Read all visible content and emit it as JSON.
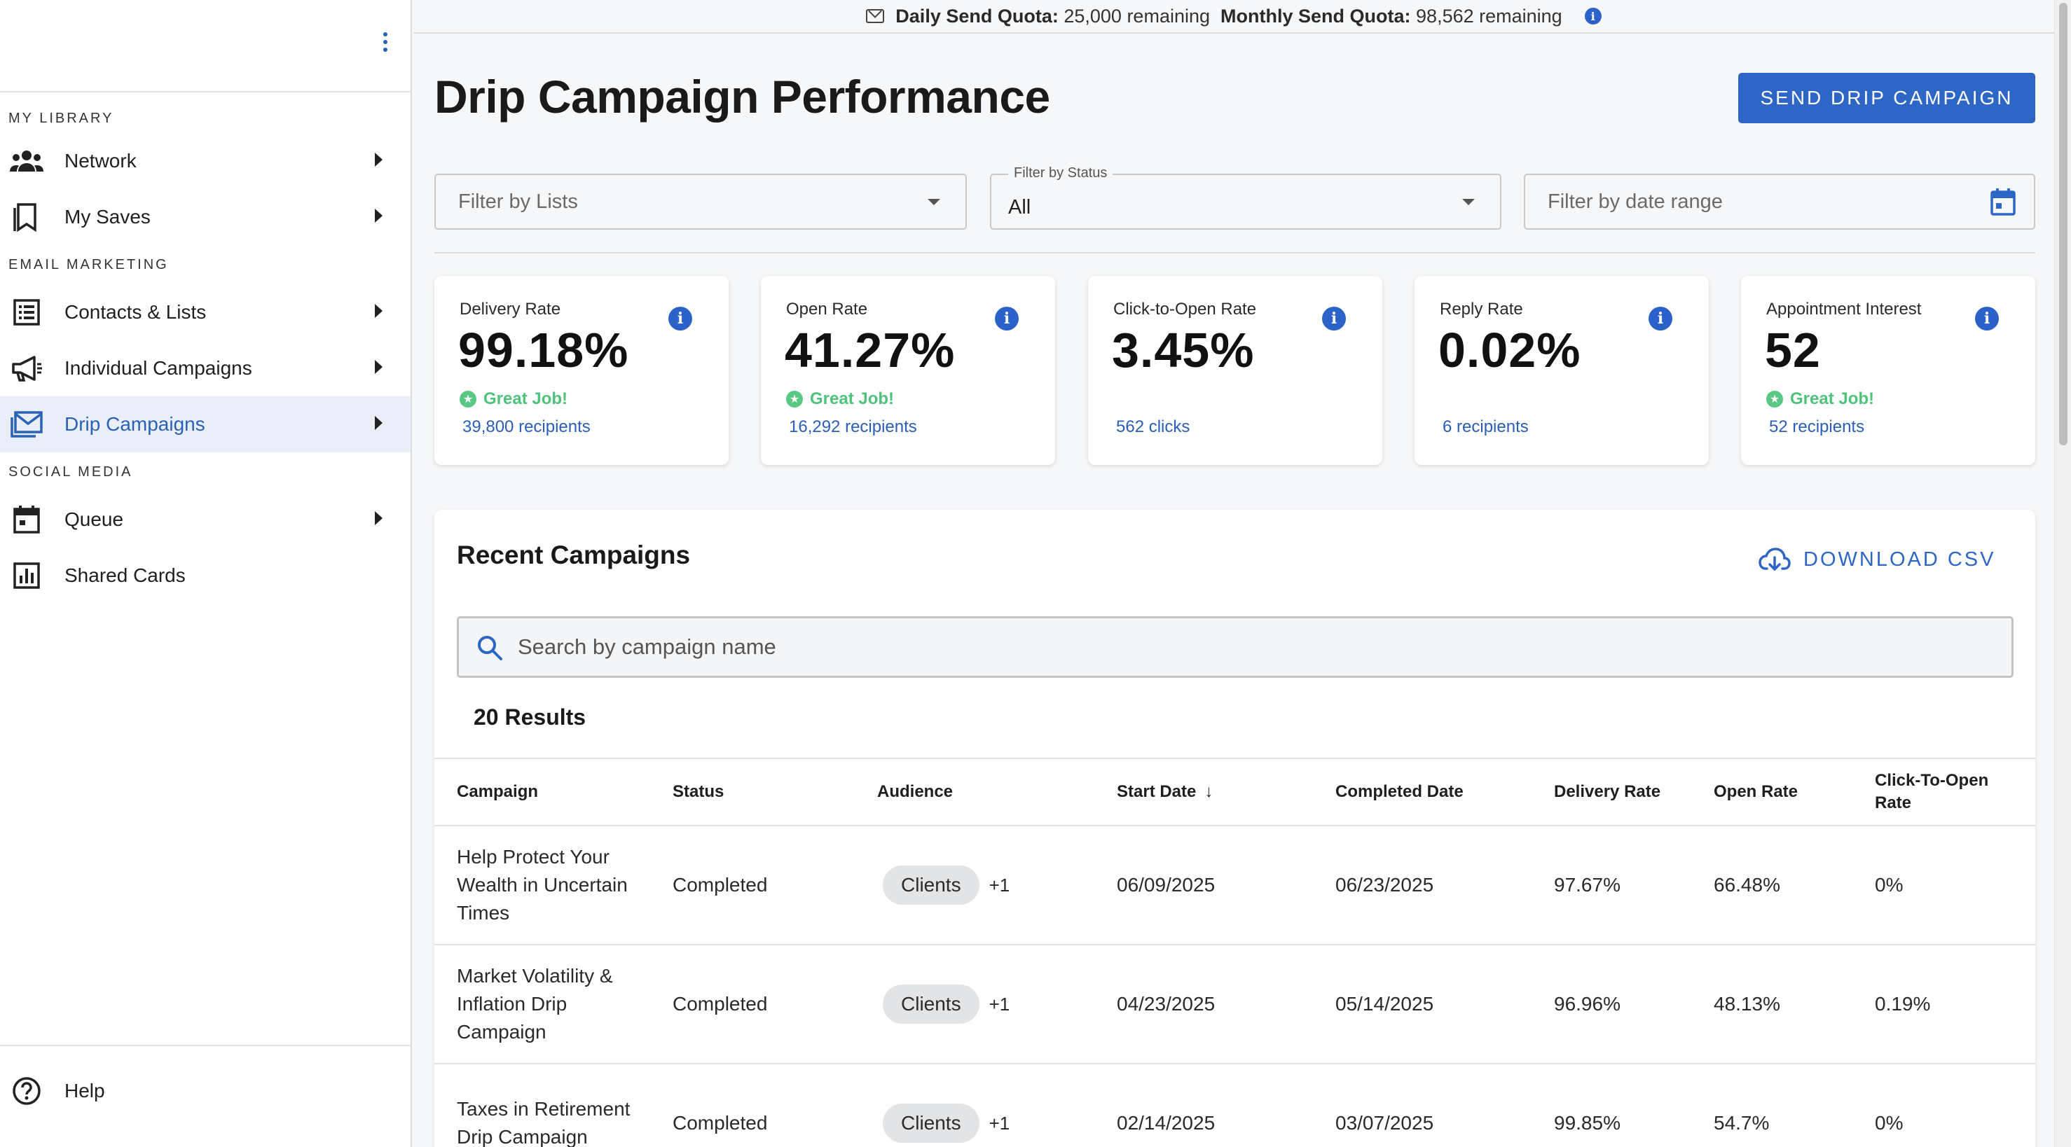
{
  "sidebar": {
    "sections": [
      {
        "label": "MY LIBRARY",
        "items": [
          {
            "label": "Network",
            "icon": "people-icon",
            "has_caret": true
          },
          {
            "label": "My Saves",
            "icon": "bookmark-icon",
            "has_caret": true
          }
        ]
      },
      {
        "label": "EMAIL MARKETING",
        "items": [
          {
            "label": "Contacts & Lists",
            "icon": "list-icon",
            "has_caret": true
          },
          {
            "label": "Individual Campaigns",
            "icon": "megaphone-icon",
            "has_caret": true
          },
          {
            "label": "Drip Campaigns",
            "icon": "mail-icon",
            "has_caret": true,
            "active": true
          }
        ]
      },
      {
        "label": "SOCIAL MEDIA",
        "items": [
          {
            "label": "Queue",
            "icon": "calendar-icon",
            "has_caret": true
          },
          {
            "label": "Shared Cards",
            "icon": "chart-icon",
            "has_caret": false
          }
        ]
      }
    ],
    "help_label": "Help"
  },
  "quota": {
    "daily_label": "Daily Send Quota:",
    "daily_value": "25,000 remaining",
    "monthly_label": "Monthly Send Quota:",
    "monthly_value": "98,562 remaining"
  },
  "page": {
    "title": "Drip Campaign Performance",
    "send_button": "SEND DRIP CAMPAIGN"
  },
  "filters": {
    "lists_placeholder": "Filter by Lists",
    "status_label": "Filter by Status",
    "status_value": "All",
    "date_placeholder": "Filter by date range"
  },
  "cards": [
    {
      "title": "Delivery Rate",
      "value": "99.18%",
      "badge": "Great Job!",
      "sub": "39,800 recipients"
    },
    {
      "title": "Open Rate",
      "value": "41.27%",
      "badge": "Great Job!",
      "sub": "16,292 recipients"
    },
    {
      "title": "Click-to-Open Rate",
      "value": "3.45%",
      "badge": "",
      "sub": "562 clicks"
    },
    {
      "title": "Reply Rate",
      "value": "0.02%",
      "badge": "",
      "sub": "6 recipients"
    },
    {
      "title": "Appointment Interest",
      "value": "52",
      "badge": "Great Job!",
      "sub": "52 recipients"
    }
  ],
  "recent": {
    "title": "Recent Campaigns",
    "download_label": "DOWNLOAD CSV",
    "search_placeholder": "Search by campaign name",
    "results_label": "20 Results",
    "columns": [
      "Campaign",
      "Status",
      "Audience",
      "Start Date",
      "Completed Date",
      "Delivery Rate",
      "Open Rate",
      "Click-To-Open Rate"
    ],
    "rows": [
      {
        "campaign": "Help Protect Your Wealth in Uncertain Times",
        "status": "Completed",
        "audience": "Clients",
        "audience_extra": "+1",
        "start": "06/09/2025",
        "completed": "06/23/2025",
        "delivery": "97.67%",
        "open": "66.48%",
        "cto": "0%"
      },
      {
        "campaign": "Market Volatility & Inflation Drip Campaign",
        "status": "Completed",
        "audience": "Clients",
        "audience_extra": "+1",
        "start": "04/23/2025",
        "completed": "05/14/2025",
        "delivery": "96.96%",
        "open": "48.13%",
        "cto": "0.19%"
      },
      {
        "campaign": "Taxes in Retirement Drip Campaign",
        "status": "Completed",
        "audience": "Clients",
        "audience_extra": "+1",
        "start": "02/14/2025",
        "completed": "03/07/2025",
        "delivery": "99.85%",
        "open": "54.7%",
        "cto": "0%"
      }
    ]
  },
  "colors": {
    "accent": "#2d66c4",
    "success": "#4fc27c",
    "active_bg": "#e9eef7"
  }
}
